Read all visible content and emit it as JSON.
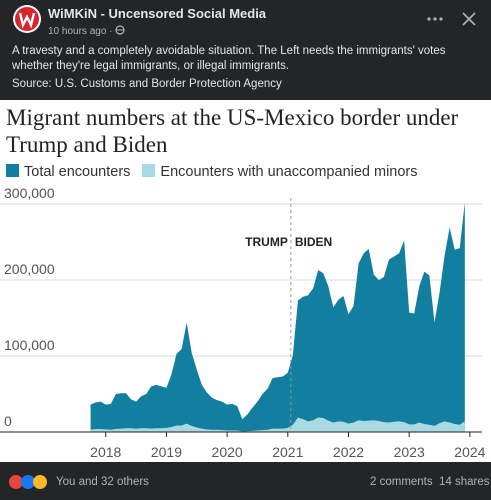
{
  "post": {
    "author": "WiMKiN - Uncensored Social Media",
    "time": "10 hours ago ·",
    "text": "A travesty and a completely avoidable situation. The Left needs the immigrants' votes whether they're legal immigrants, or illegal immigrants.",
    "source": "Source: U.S. Customs and Border Protection Agency",
    "reactions": "You and 32 others",
    "comments": "2 comments",
    "shares": "14 shares"
  },
  "chart_data": {
    "type": "area",
    "title": "Migrant numbers at the US-Mexico border under Trump and Biden",
    "annotations": [
      "TRUMP",
      "BIDEN"
    ],
    "divider_x": 2021.05,
    "x": [
      2017.75,
      2017.833,
      2017.917,
      2018,
      2018.083,
      2018.167,
      2018.25,
      2018.333,
      2018.417,
      2018.5,
      2018.583,
      2018.667,
      2018.75,
      2018.833,
      2018.917,
      2019,
      2019.083,
      2019.167,
      2019.25,
      2019.333,
      2019.417,
      2019.5,
      2019.583,
      2019.667,
      2019.75,
      2019.833,
      2019.917,
      2020,
      2020.083,
      2020.167,
      2020.25,
      2020.333,
      2020.417,
      2020.5,
      2020.583,
      2020.667,
      2020.75,
      2020.833,
      2020.917,
      2021,
      2021.083,
      2021.167,
      2021.25,
      2021.333,
      2021.417,
      2021.5,
      2021.583,
      2021.667,
      2021.75,
      2021.833,
      2021.917,
      2022,
      2022.083,
      2022.167,
      2022.25,
      2022.333,
      2022.417,
      2022.5,
      2022.583,
      2022.667,
      2022.75,
      2022.833,
      2022.917,
      2023,
      2023.083,
      2023.167,
      2023.25,
      2023.333,
      2023.417,
      2023.5,
      2023.583,
      2023.667,
      2023.75,
      2023.833,
      2023.917
    ],
    "series": [
      {
        "name": "Total encounters",
        "color": "#137fa0",
        "values": [
          36000,
          39000,
          40000,
          36000,
          37000,
          50000,
          51000,
          51000,
          43000,
          40000,
          47000,
          50000,
          60000,
          62000,
          60000,
          58000,
          76000,
          103000,
          109000,
          144000,
          104000,
          82000,
          62000,
          52000,
          45000,
          42000,
          40000,
          36000,
          37000,
          34000,
          17000,
          23000,
          32000,
          40000,
          50000,
          57000,
          71000,
          72000,
          73000,
          78000,
          101000,
          173000,
          178000,
          180000,
          189000,
          213000,
          209000,
          192000,
          164000,
          174000,
          179000,
          155000,
          166000,
          222000,
          235000,
          241000,
          207000,
          200000,
          204000,
          227000,
          231000,
          235000,
          252000,
          157000,
          156000,
          192000,
          211000,
          206000,
          144000,
          183000,
          232000,
          269000,
          240000,
          242000,
          302000
        ]
      },
      {
        "name": "Encounters with unaccompanied minors",
        "color": "#a9d9e2",
        "values": [
          3000,
          4000,
          4000,
          3500,
          3000,
          4000,
          4500,
          5000,
          5000,
          4500,
          5000,
          5000,
          4500,
          5000,
          5000,
          5500,
          6500,
          8500,
          8500,
          11000,
          8000,
          6000,
          4500,
          3500,
          3000,
          3000,
          2500,
          2000,
          2000,
          2000,
          800,
          1000,
          1500,
          2000,
          2500,
          3000,
          4500,
          4500,
          4500,
          5500,
          9500,
          19000,
          17000,
          14000,
          15500,
          19000,
          18500,
          15000,
          12500,
          14000,
          13500,
          11000,
          12500,
          15500,
          14500,
          15000,
          15500,
          14500,
          13000,
          12500,
          13500,
          14000,
          13000,
          10000,
          10000,
          12500,
          10500,
          9500,
          8000,
          11500,
          14000,
          12500,
          10500,
          9500,
          14000
        ]
      }
    ],
    "xlim": [
      2016.9,
      2024.2
    ],
    "xticks": [
      2018,
      2019,
      2020,
      2021,
      2022,
      2023,
      2024
    ],
    "ylim": [
      0,
      310000
    ],
    "yticks": [
      0,
      {
        "value": 100000,
        "label": "100,000"
      },
      {
        "value": 200000,
        "label": "200,000"
      },
      {
        "value": 300000,
        "label": "300,000"
      }
    ],
    "grid": true
  }
}
